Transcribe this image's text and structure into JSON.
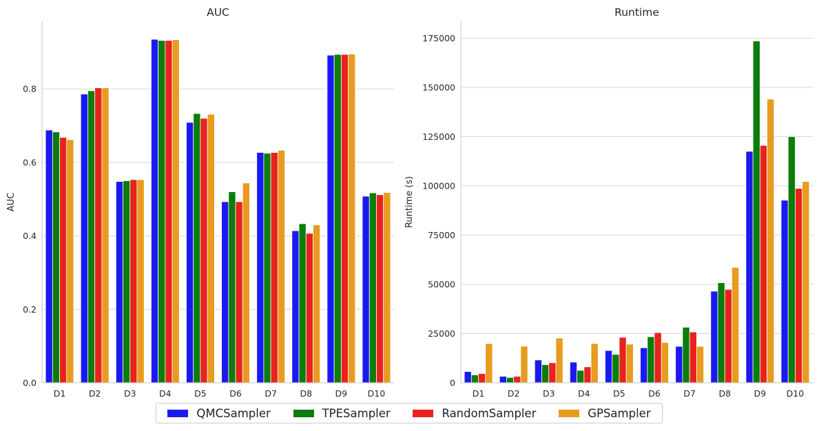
{
  "colors": {
    "QMCSampler": "#1a1af0",
    "TPESampler": "#0b7d0b",
    "RandomSampler": "#e8231c",
    "GPSampler": "#e89b20",
    "grid": "#d4d4d4",
    "axis": "#cfcfcf"
  },
  "legend": {
    "items": [
      {
        "label": "QMCSampler",
        "color": "#1a1af0"
      },
      {
        "label": "TPESampler",
        "color": "#0b7d0b"
      },
      {
        "label": "RandomSampler",
        "color": "#e8231c"
      },
      {
        "label": "GPSampler",
        "color": "#e89b20"
      }
    ]
  },
  "chart_data": [
    {
      "type": "bar",
      "title": "AUC",
      "xlabel": "",
      "ylabel": "AUC",
      "ylim": [
        0,
        0.984
      ],
      "yticks": [
        0.0,
        0.2,
        0.4,
        0.6,
        0.8
      ],
      "ytick_labels": [
        "0.0",
        "0.2",
        "0.4",
        "0.6",
        "0.8"
      ],
      "grid": "horizontal",
      "legend_position": "bottom-center",
      "categories": [
        "D1",
        "D2",
        "D3",
        "D4",
        "D5",
        "D6",
        "D7",
        "D8",
        "D9",
        "D10"
      ],
      "series": [
        {
          "name": "QMCSampler",
          "values": [
            0.688,
            0.786,
            0.548,
            0.935,
            0.709,
            0.493,
            0.627,
            0.414,
            0.892,
            0.508
          ]
        },
        {
          "name": "TPESampler",
          "values": [
            0.683,
            0.795,
            0.55,
            0.932,
            0.733,
            0.52,
            0.625,
            0.433,
            0.894,
            0.517
          ]
        },
        {
          "name": "RandomSampler",
          "values": [
            0.668,
            0.803,
            0.553,
            0.932,
            0.72,
            0.493,
            0.627,
            0.407,
            0.894,
            0.512
          ]
        },
        {
          "name": "GPSampler",
          "values": [
            0.662,
            0.803,
            0.553,
            0.934,
            0.731,
            0.544,
            0.633,
            0.43,
            0.895,
            0.518
          ]
        }
      ]
    },
    {
      "type": "bar",
      "title": "Runtime",
      "xlabel": "",
      "ylabel": "Runtime (s)",
      "ylim": [
        0,
        183500
      ],
      "yticks": [
        0,
        25000,
        50000,
        75000,
        100000,
        125000,
        150000,
        175000
      ],
      "ytick_labels": [
        "0",
        "25000",
        "50000",
        "75000",
        "100000",
        "125000",
        "150000",
        "175000"
      ],
      "grid": "horizontal",
      "legend_position": "bottom-center",
      "categories": [
        "D1",
        "D2",
        "D3",
        "D4",
        "D5",
        "D6",
        "D7",
        "D8",
        "D9",
        "D10"
      ],
      "series": [
        {
          "name": "QMCSampler",
          "values": [
            5700,
            3300,
            11600,
            10500,
            16400,
            17800,
            18500,
            46500,
            117500,
            92700
          ]
        },
        {
          "name": "TPESampler",
          "values": [
            4000,
            2700,
            9200,
            6300,
            14400,
            23400,
            28200,
            50800,
            173500,
            125000
          ]
        },
        {
          "name": "RandomSampler",
          "values": [
            4700,
            3300,
            10200,
            8100,
            23100,
            25500,
            25800,
            47400,
            120500,
            98700
          ]
        },
        {
          "name": "GPSampler",
          "values": [
            19900,
            18600,
            22700,
            19900,
            19600,
            20500,
            18500,
            58600,
            144000,
            102200
          ]
        }
      ]
    }
  ]
}
